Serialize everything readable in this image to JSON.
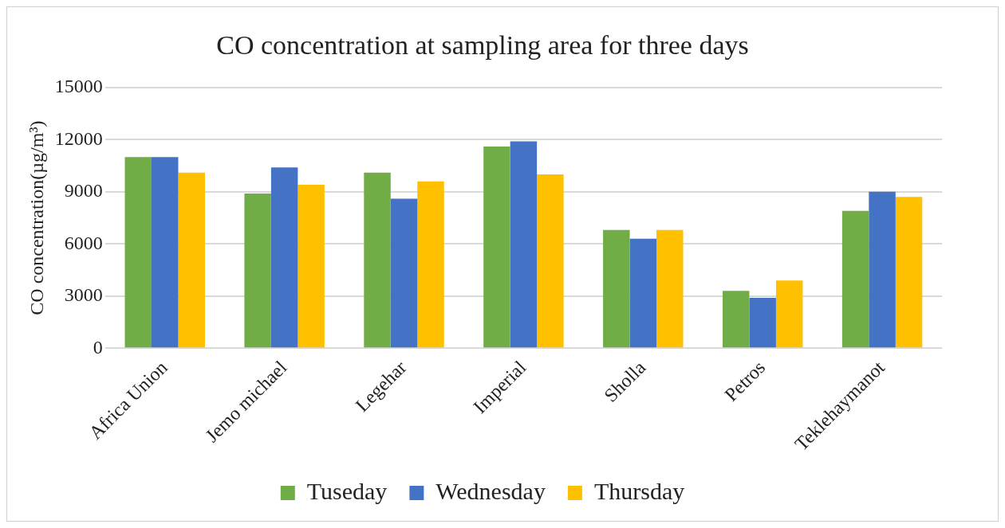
{
  "chart_data": {
    "type": "bar",
    "title": "CO concentration at sampling area for three days",
    "ylabel": "CO concentration(µg/m³)",
    "categories": [
      "Africa Union",
      "Jemo michael",
      "Legehar",
      "Imperial",
      "Sholla",
      "Petros",
      "Teklehaymanot"
    ],
    "series": [
      {
        "name": "Tuseday",
        "color": "#70ad47",
        "values": [
          11000,
          8900,
          10100,
          11600,
          6800,
          3300,
          7900
        ]
      },
      {
        "name": "Wednesday",
        "color": "#4472c4",
        "values": [
          11000,
          10400,
          8600,
          11900,
          6300,
          2900,
          9000
        ]
      },
      {
        "name": "Thursday",
        "color": "#ffc000",
        "values": [
          10100,
          9400,
          9600,
          10000,
          6800,
          3900,
          8700
        ]
      }
    ],
    "ylim": [
      0,
      15000
    ],
    "yticks": [
      0,
      3000,
      6000,
      9000,
      12000,
      15000
    ],
    "grid": "y",
    "legend": "bottom"
  }
}
